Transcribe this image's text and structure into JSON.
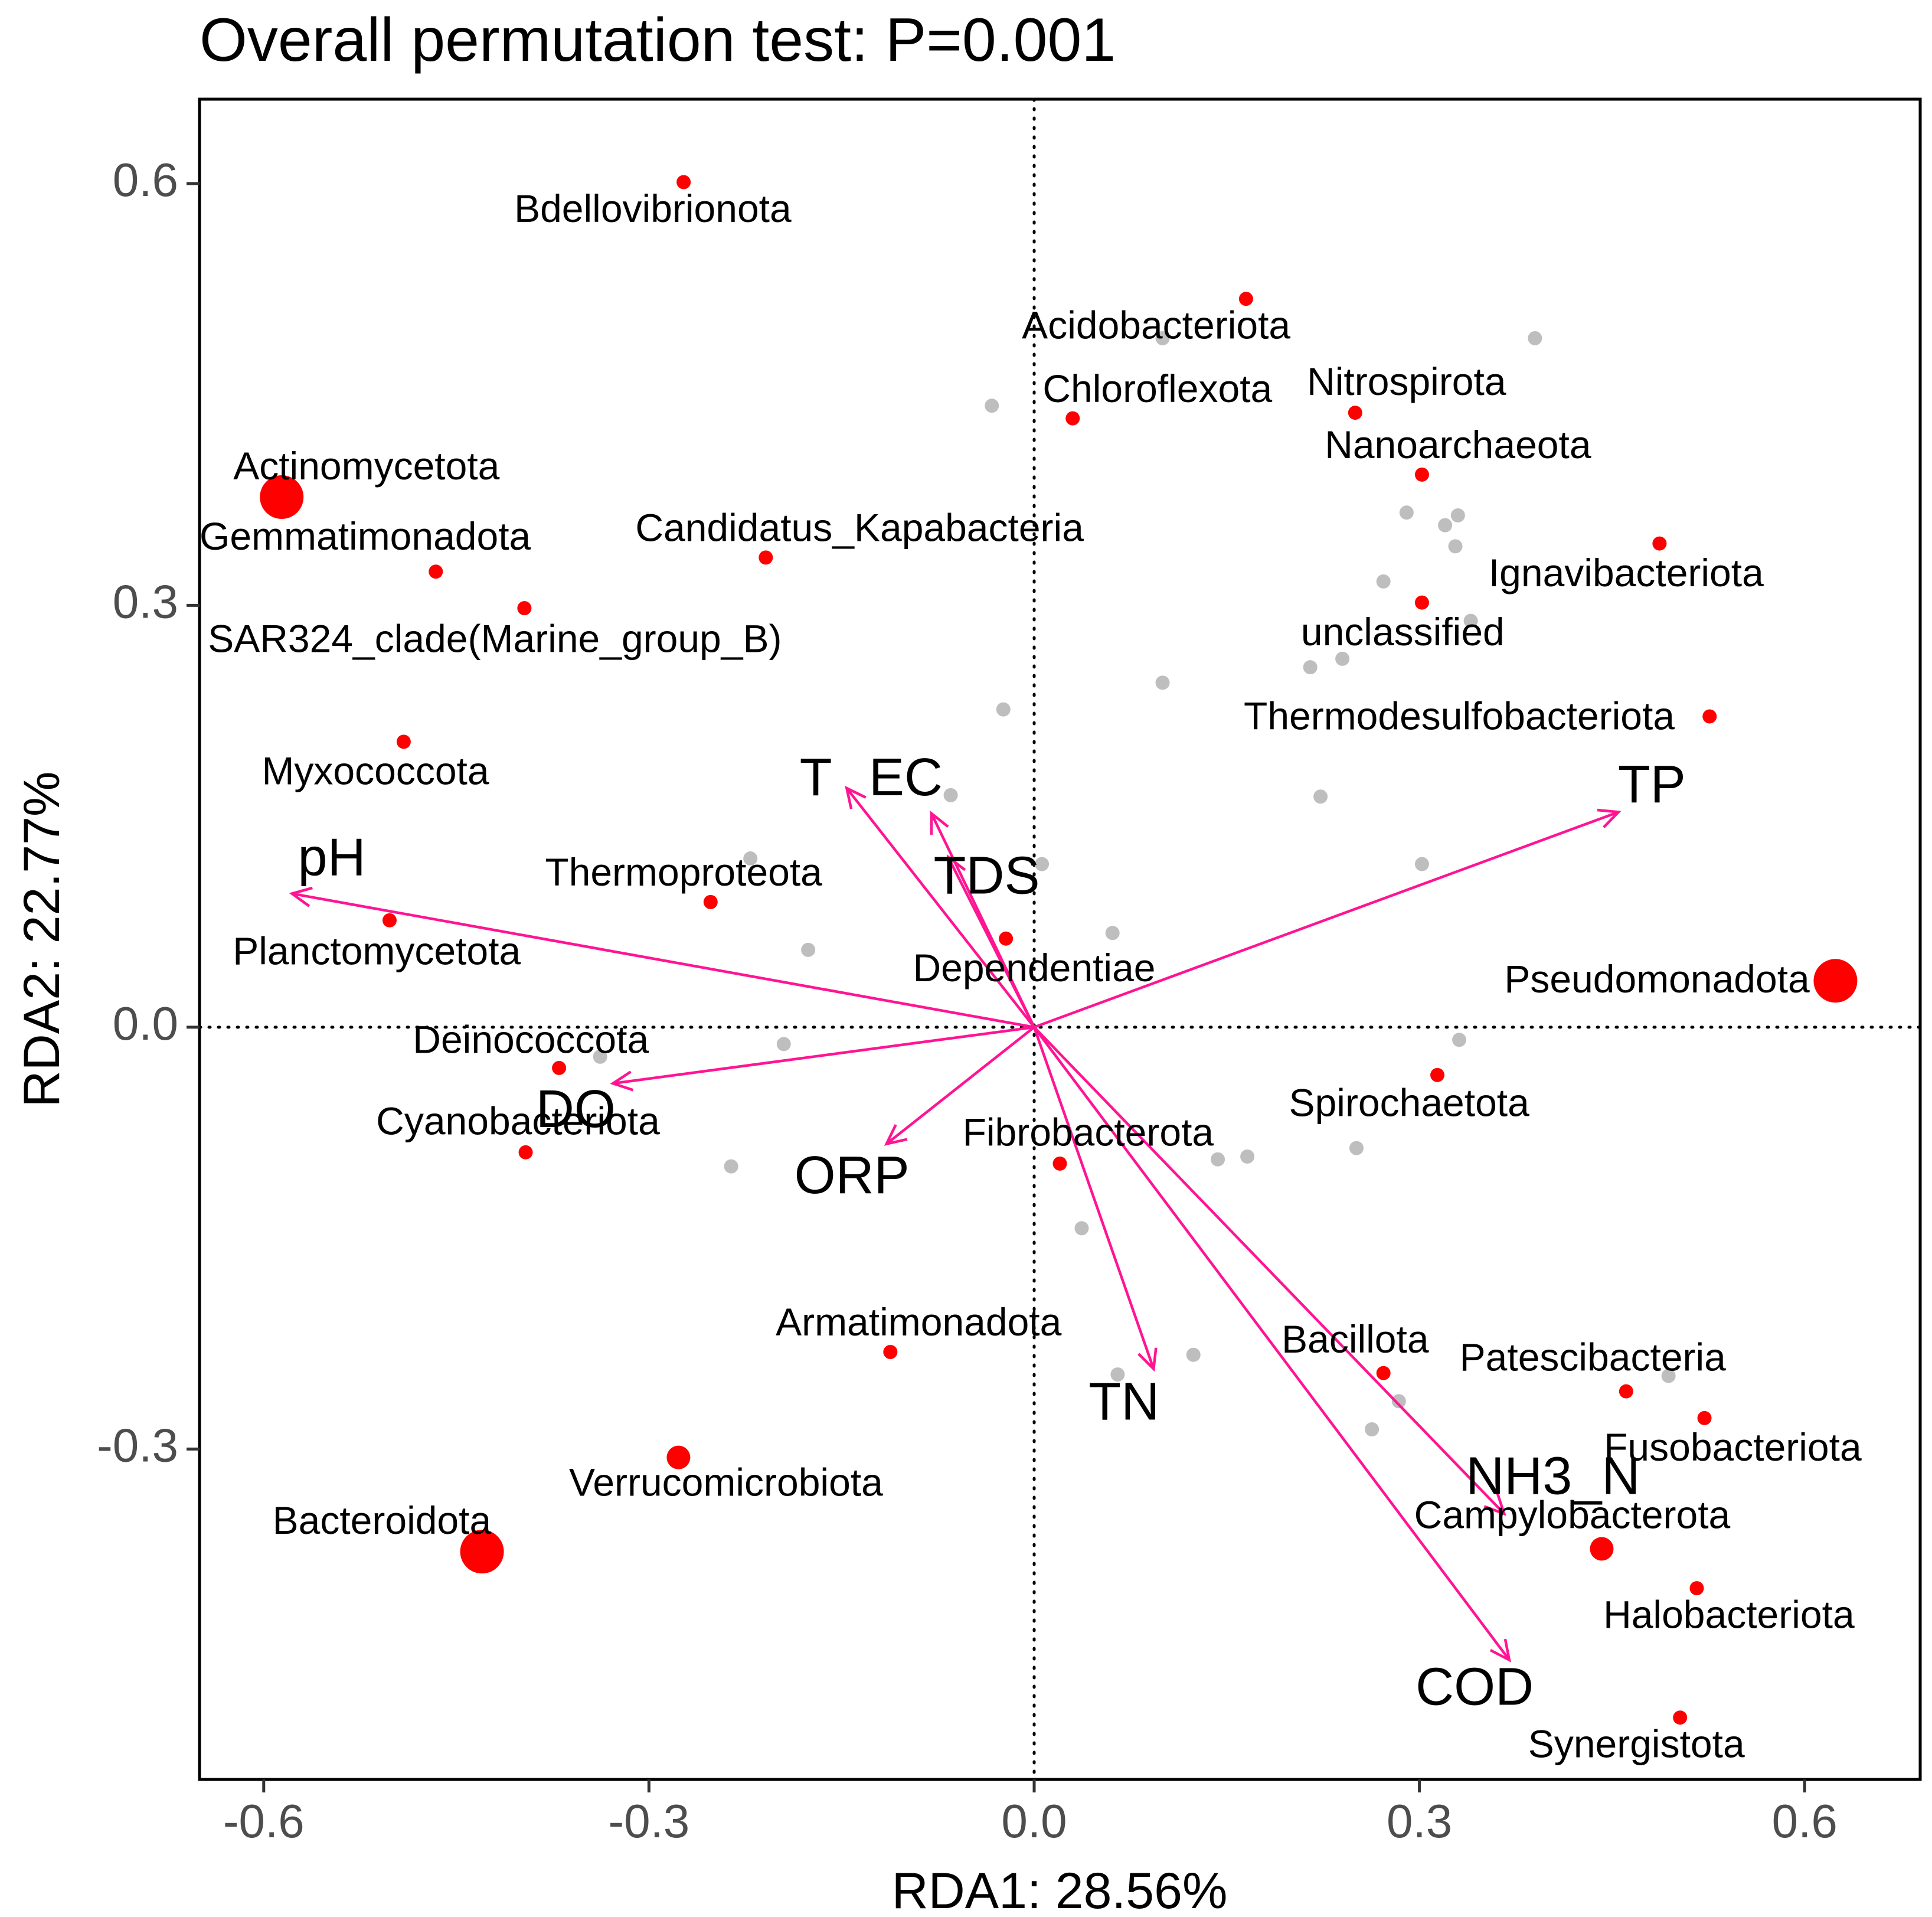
{
  "chart_data": {
    "type": "scatter",
    "title": "Overall permutation test: P=0.001",
    "xlabel": "RDA1: 28.56%",
    "ylabel": "RDA2: 22.77%",
    "xlim": [
      -0.65,
      0.69
    ],
    "ylim": [
      -0.535,
      0.66
    ],
    "xticks": [
      -0.6,
      -0.3,
      0.0,
      0.3,
      0.6
    ],
    "xtick_labels": [
      "-0.6",
      "-0.3",
      "0.0",
      "0.3",
      "0.6"
    ],
    "yticks": [
      -0.3,
      0.0,
      0.3,
      0.6
    ],
    "ytick_labels": [
      "-0.3",
      "0.0",
      "0.3",
      "0.6"
    ],
    "grid": false,
    "reference_lines": "dotted lines at x=0 and y=0",
    "point_color": "#ff0000",
    "background_point_color": "#bebebe",
    "arrow_color": "#ff1493",
    "species": [
      {
        "name": "Bdellovibrionota",
        "x": -0.273,
        "y": 0.601,
        "size": 1,
        "lx": -0.297,
        "ly": 0.58
      },
      {
        "name": "Acidobacteriota",
        "x": 0.165,
        "y": 0.518,
        "size": 1,
        "lx": 0.095,
        "ly": 0.497
      },
      {
        "name": "Nitrospirota",
        "x": 0.25,
        "y": 0.437,
        "size": 1,
        "lx": 0.29,
        "ly": 0.457
      },
      {
        "name": "Chloroflexota",
        "x": 0.03,
        "y": 0.433,
        "size": 1,
        "lx": 0.096,
        "ly": 0.452
      },
      {
        "name": "Nanoarchaeota",
        "x": 0.302,
        "y": 0.393,
        "size": 1,
        "lx": 0.33,
        "ly": 0.412
      },
      {
        "name": "Actinomycetota",
        "x": -0.586,
        "y": 0.377,
        "size": 3,
        "lx": -0.52,
        "ly": 0.397
      },
      {
        "name": "Ignavibacteriota",
        "x": 0.487,
        "y": 0.344,
        "size": 1,
        "lx": 0.461,
        "ly": 0.321
      },
      {
        "name": "Gemmatimonadota",
        "x": -0.466,
        "y": 0.324,
        "size": 1,
        "lx": -0.521,
        "ly": 0.347
      },
      {
        "name": "Candidatus_Kapabacteria",
        "x": -0.209,
        "y": 0.334,
        "size": 1,
        "lx": -0.136,
        "ly": 0.353
      },
      {
        "name": "unclassified",
        "x": 0.302,
        "y": 0.302,
        "size": 1,
        "lx": 0.287,
        "ly": 0.279
      },
      {
        "name": "SAR324_clade(Marine_group_B)",
        "x": -0.397,
        "y": 0.298,
        "size": 1,
        "lx": -0.42,
        "ly": 0.274
      },
      {
        "name": "Thermodesulfobacteriota",
        "x": 0.526,
        "y": 0.221,
        "size": 1,
        "lx": 0.331,
        "ly": 0.219
      },
      {
        "name": "Myxococcota",
        "x": -0.491,
        "y": 0.203,
        "size": 1,
        "lx": -0.513,
        "ly": 0.18
      },
      {
        "name": "Thermoproteota",
        "x": -0.252,
        "y": 0.089,
        "size": 1,
        "lx": -0.273,
        "ly": 0.108
      },
      {
        "name": "Planctomycetota",
        "x": -0.502,
        "y": 0.076,
        "size": 1,
        "lx": -0.512,
        "ly": 0.052
      },
      {
        "name": "Dependentiae",
        "x": -0.022,
        "y": 0.063,
        "size": 1,
        "lx": 0.0,
        "ly": 0.04
      },
      {
        "name": "Pseudomonadota",
        "x": 0.624,
        "y": 0.033,
        "size": 3,
        "lx": 0.485,
        "ly": 0.032
      },
      {
        "name": "Deinococcota",
        "x": -0.37,
        "y": -0.029,
        "size": 1,
        "lx": -0.392,
        "ly": -0.011
      },
      {
        "name": "Spirochaetota",
        "x": 0.314,
        "y": -0.034,
        "size": 1,
        "lx": 0.292,
        "ly": -0.056
      },
      {
        "name": "Cyanobacteriota",
        "x": -0.396,
        "y": -0.089,
        "size": 1,
        "lx": -0.402,
        "ly": -0.069
      },
      {
        "name": "Fibrobacterota",
        "x": 0.02,
        "y": -0.097,
        "size": 1,
        "lx": 0.042,
        "ly": -0.077
      },
      {
        "name": "Armatimonadota",
        "x": -0.112,
        "y": -0.231,
        "size": 1,
        "lx": -0.09,
        "ly": -0.212
      },
      {
        "name": "Bacillota",
        "x": 0.272,
        "y": -0.246,
        "size": 1,
        "lx": 0.25,
        "ly": -0.224
      },
      {
        "name": "Patescibacteria",
        "x": 0.461,
        "y": -0.259,
        "size": 1,
        "lx": 0.435,
        "ly": -0.237
      },
      {
        "name": "Fusobacteriota",
        "x": 0.522,
        "y": -0.278,
        "size": 1,
        "lx": 0.544,
        "ly": -0.301
      },
      {
        "name": "Verrucomicrobiota",
        "x": -0.277,
        "y": -0.306,
        "size": 2,
        "lx": -0.24,
        "ly": -0.326
      },
      {
        "name": "Campylobacterota",
        "x": 0.442,
        "y": -0.371,
        "size": 2,
        "lx": 0.419,
        "ly": -0.349
      },
      {
        "name": "Bacteroidota",
        "x": -0.43,
        "y": -0.373,
        "size": 3,
        "lx": -0.508,
        "ly": -0.353
      },
      {
        "name": "Halobacteriota",
        "x": 0.516,
        "y": -0.399,
        "size": 1,
        "lx": 0.541,
        "ly": -0.42
      },
      {
        "name": "Synergistota",
        "x": 0.503,
        "y": -0.491,
        "size": 1,
        "lx": 0.469,
        "ly": -0.512
      }
    ],
    "background_points": [
      {
        "x": 0.39,
        "y": 0.49
      },
      {
        "x": 0.1,
        "y": 0.49
      },
      {
        "x": -0.033,
        "y": 0.442
      },
      {
        "x": 0.29,
        "y": 0.366
      },
      {
        "x": 0.33,
        "y": 0.364
      },
      {
        "x": 0.32,
        "y": 0.357
      },
      {
        "x": 0.328,
        "y": 0.342
      },
      {
        "x": 0.272,
        "y": 0.317
      },
      {
        "x": 0.34,
        "y": 0.289
      },
      {
        "x": 0.24,
        "y": 0.262
      },
      {
        "x": 0.215,
        "y": 0.256
      },
      {
        "x": 0.1,
        "y": 0.245
      },
      {
        "x": -0.024,
        "y": 0.226
      },
      {
        "x": 0.223,
        "y": 0.164
      },
      {
        "x": -0.065,
        "y": 0.165
      },
      {
        "x": -0.221,
        "y": 0.12
      },
      {
        "x": 0.006,
        "y": 0.116
      },
      {
        "x": 0.302,
        "y": 0.116
      },
      {
        "x": 0.061,
        "y": 0.067
      },
      {
        "x": -0.176,
        "y": 0.055
      },
      {
        "x": -0.195,
        "y": -0.012
      },
      {
        "x": -0.338,
        "y": -0.021
      },
      {
        "x": 0.331,
        "y": -0.009
      },
      {
        "x": -0.236,
        "y": -0.099
      },
      {
        "x": 0.143,
        "y": -0.094
      },
      {
        "x": 0.166,
        "y": -0.092
      },
      {
        "x": 0.251,
        "y": -0.086
      },
      {
        "x": 0.037,
        "y": -0.143
      },
      {
        "x": 0.124,
        "y": -0.233
      },
      {
        "x": 0.065,
        "y": -0.247
      },
      {
        "x": 0.284,
        "y": -0.266
      },
      {
        "x": 0.263,
        "y": -0.286
      },
      {
        "x": 0.494,
        "y": -0.248
      }
    ],
    "env_vectors": [
      {
        "name": "pH",
        "x": -0.578,
        "y": 0.095,
        "lx": -0.547,
        "ly": 0.118
      },
      {
        "name": "T",
        "x": -0.146,
        "y": 0.17,
        "lx": -0.17,
        "ly": 0.175
      },
      {
        "name": "EC",
        "x": -0.08,
        "y": 0.152,
        "lx": -0.1,
        "ly": 0.175
      },
      {
        "name": "TDS",
        "x": -0.067,
        "y": 0.121,
        "lx": -0.037,
        "ly": 0.105
      },
      {
        "name": "TP",
        "x": 0.455,
        "y": 0.153,
        "lx": 0.481,
        "ly": 0.17
      },
      {
        "name": "DO",
        "x": -0.328,
        "y": -0.04,
        "lx": -0.357,
        "ly": -0.061
      },
      {
        "name": "ORP",
        "x": -0.115,
        "y": -0.083,
        "lx": -0.142,
        "ly": -0.108
      },
      {
        "name": "TN",
        "x": 0.093,
        "y": -0.243,
        "lx": 0.07,
        "ly": -0.269
      },
      {
        "name": "NH3_N",
        "x": 0.366,
        "y": -0.346,
        "lx": 0.404,
        "ly": -0.322
      },
      {
        "name": "COD",
        "x": 0.37,
        "y": -0.45,
        "lx": 0.343,
        "ly": -0.472
      }
    ]
  }
}
